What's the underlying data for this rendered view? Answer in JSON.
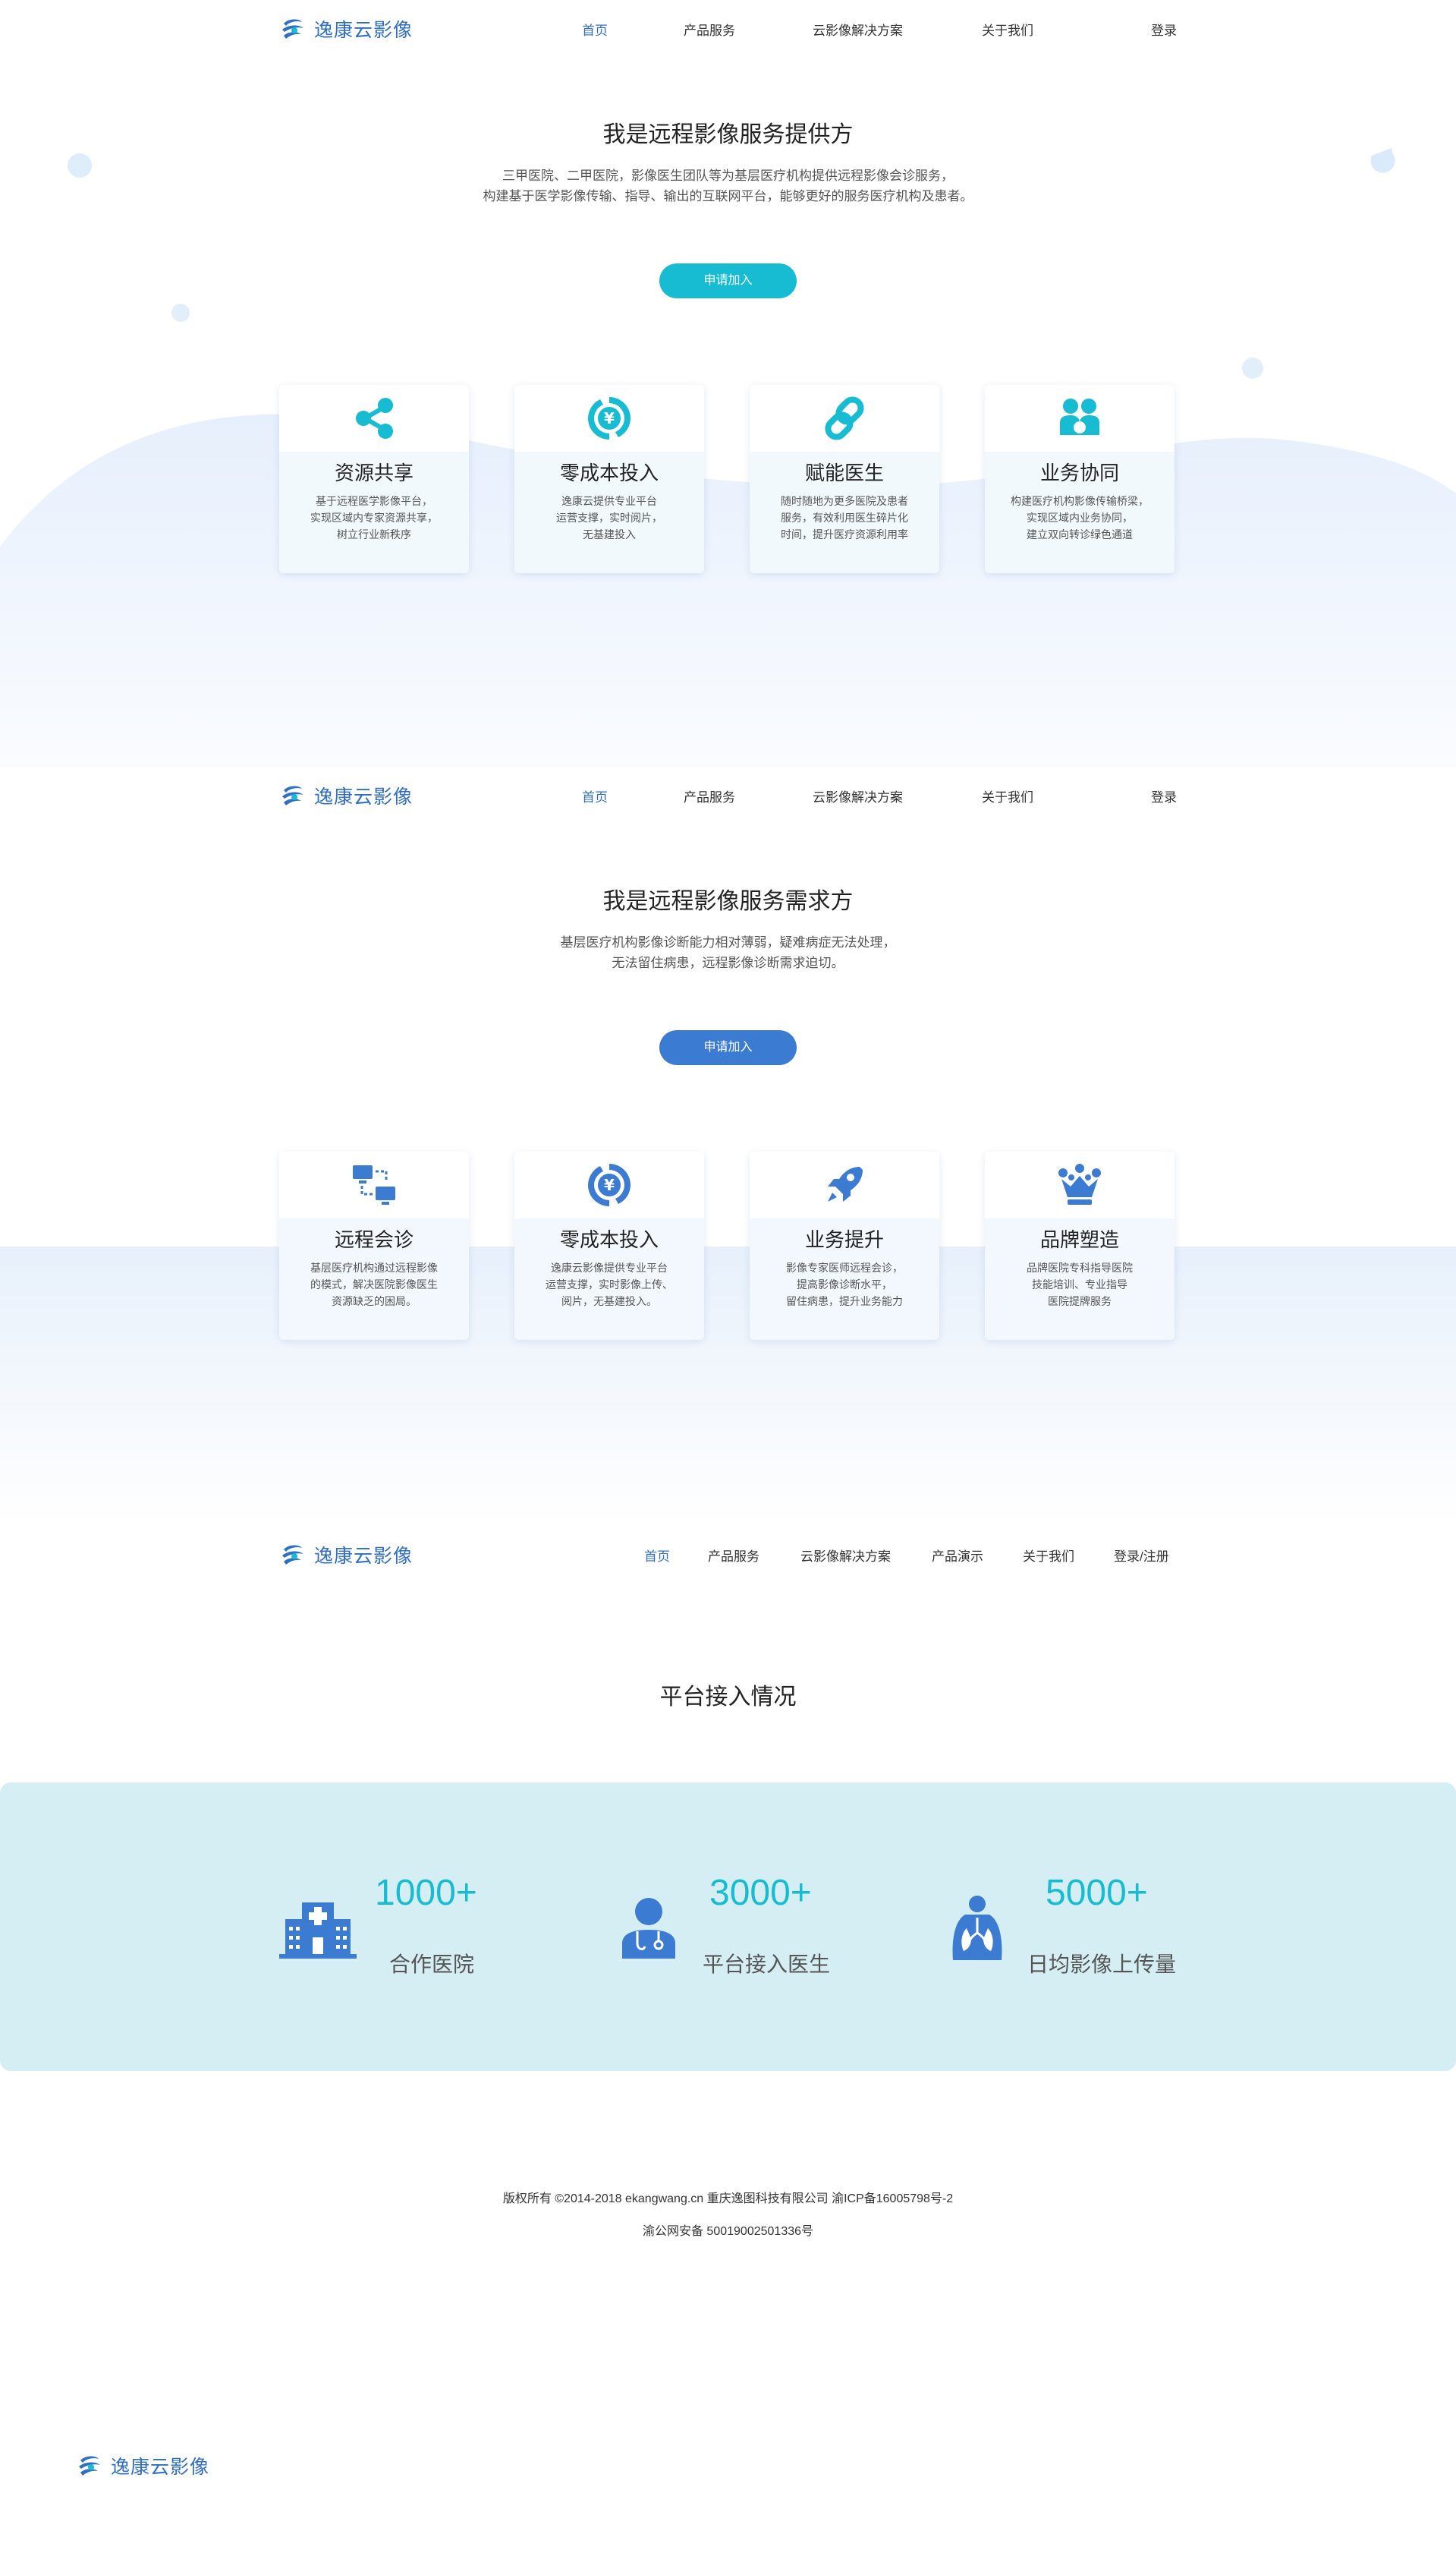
{
  "brand": {
    "name": "逸康云影像"
  },
  "nav": {
    "home": "首页",
    "products": "产品服务",
    "solutions": "云影像解决方案",
    "about": "关于我们",
    "login": "登录",
    "demo": "产品演示",
    "login_register": "登录/注册"
  },
  "provider": {
    "title": "我是远程影像服务提供方",
    "desc_line1": "三甲医院、二甲医院，影像医生团队等为基层医疗机构提供远程影像会诊服务，",
    "desc_line2": "构建基于医学影像传输、指导、输出的互联网平台，能够更好的服务医疗机构及患者。",
    "button": "申请加入",
    "cards": [
      {
        "title": "资源共享",
        "line1": "基于远程医学影像平台，",
        "line2": "实现区域内专家资源共享，",
        "line3": "树立行业新秩序",
        "icon": "share-icon"
      },
      {
        "title": "零成本投入",
        "line1": "逸康云提供专业平台",
        "line2": "运营支撑，实时阅片，",
        "line3": "无基建投入",
        "icon": "yen-cycle-icon"
      },
      {
        "title": "赋能医生",
        "line1": "随时随地为更多医院及患者",
        "line2": "服务，有效利用医生碎片化",
        "line3": "时间，提升医疗资源利用率",
        "icon": "link-icon"
      },
      {
        "title": "业务协同",
        "line1": "构建医疗机构影像传输桥梁，",
        "line2": "实现区域内业务协同，",
        "line3": "建立双向转诊绿色通道",
        "icon": "collaboration-icon"
      }
    ]
  },
  "demand": {
    "title": "我是远程影像服务需求方",
    "desc_line1": "基层医疗机构影像诊断能力相对薄弱，疑难病症无法处理，",
    "desc_line2": "无法留住病患，远程影像诊断需求迫切。",
    "button": "申请加入",
    "cards": [
      {
        "title": "远程会诊",
        "line1": "基层医疗机构通过远程影像",
        "line2": "的模式，解决医院影像医生",
        "line3": "资源缺乏的困局。",
        "icon": "remote-consult-icon"
      },
      {
        "title": "零成本投入",
        "line1": "逸康云影像提供专业平台",
        "line2": "运营支撑，实时影像上传、",
        "line3": "阅片，无基建投入。",
        "icon": "yen-cycle-icon"
      },
      {
        "title": "业务提升",
        "line1": "影像专家医师远程会诊，",
        "line2": "提高影像诊断水平，",
        "line3": "留住病患，提升业务能力",
        "icon": "rocket-icon"
      },
      {
        "title": "品牌塑造",
        "line1": "品牌医院专科指导医院",
        "line2": "技能培训、专业指导",
        "line3": "医院提牌服务",
        "icon": "crown-icon"
      }
    ]
  },
  "platform": {
    "title": "平台接入情况",
    "stats": [
      {
        "number": "1000+",
        "label": "合作医院",
        "icon": "hospital-icon"
      },
      {
        "number": "3000+",
        "label": "平台接入医生",
        "icon": "doctor-icon"
      },
      {
        "number": "5000+",
        "label": "日均影像上传量",
        "icon": "lungs-icon"
      }
    ]
  },
  "footer": {
    "line1": "版权所有  ©2014-2018 ekangwang.cn  重庆逸图科技有限公司    渝ICP备16005798号-2",
    "line2": "渝公网安备   50019002501336号"
  },
  "colors": {
    "brand_blue": "#2f6fc4",
    "accent_cyan": "#17bcd2",
    "stats_bg": "#d5eef4"
  }
}
